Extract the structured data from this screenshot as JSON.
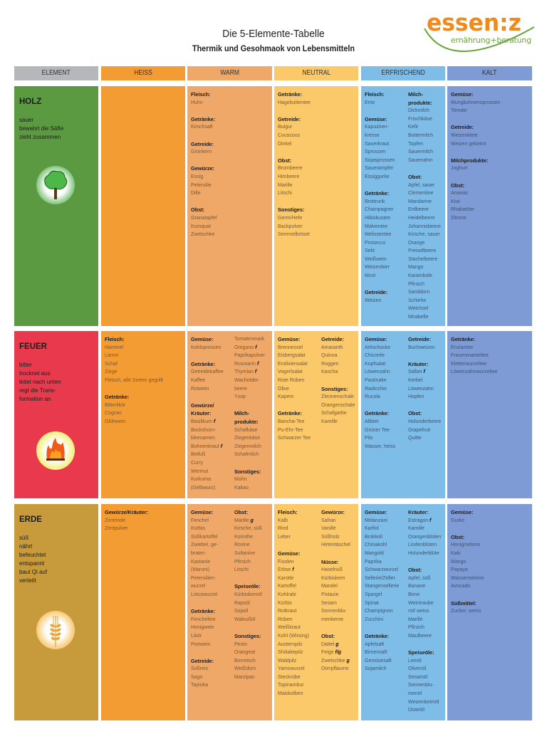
{
  "header": {
    "title": "Die 5-Elemente-Tabelle",
    "subtitle": "Thermik und Gesohmaok von Lebensmitteln",
    "logo_brand": "essen:z",
    "logo_tagline": "ernährung+beratung"
  },
  "columns": [
    "ELEMENT",
    "HEISS",
    "WARM",
    "NEUTRAL",
    "ERFRISCHEND",
    "KALT"
  ],
  "colors": {
    "element": "#b6b7ba",
    "heiss": "#f39c34",
    "warm": "#f0a868",
    "neutral": "#fbc96a",
    "erfrischend": "#7dbde8",
    "kalt": "#7e9bd6",
    "holz": "#5b9a41",
    "feuer": "#e8394d",
    "erde": "#c79a3c",
    "brand_orange": "#f08a1c",
    "brand_green": "#6aa53a"
  },
  "rows": [
    {
      "element": {
        "name": "HOLZ",
        "icon": "tree-icon",
        "desc": [
          "sauer",
          "bewahrt die Säfte",
          "zieht zusammen"
        ]
      },
      "cells": [
        [],
        [
          [
            {
              "title": "Fleisch:",
              "items": [
                "Huhn"
              ]
            },
            {
              "title": "Getränke:",
              "items": [
                "Kirschsaft"
              ]
            },
            {
              "title": "Getreide:",
              "items": [
                "Grünkern"
              ]
            },
            {
              "title": "Gewürze:",
              "items": [
                "Essig",
                "Petersilie",
                "Dille"
              ]
            },
            {
              "title": "Obst:",
              "items": [
                "Granatapfel",
                "Kumquat",
                "Zwetschke"
              ]
            }
          ]
        ],
        [
          [
            {
              "title": "Getränke:",
              "items": [
                "Hagebuttentee"
              ]
            },
            {
              "title": "Getreide:",
              "items": [
                "Bulgur",
                "Couscous",
                "Dinkel"
              ]
            },
            {
              "title": "Obst:",
              "items": [
                "Brombeere",
                "Himbeere",
                "Marille",
                "Litschi"
              ]
            },
            {
              "title": "Sonstiges:",
              "items": [
                "Germ/Hefe",
                "Backpulver",
                "Semmelbrösel"
              ]
            }
          ]
        ],
        [
          [
            {
              "title": "Fleisch:",
              "items": [
                "Ente"
              ]
            },
            {
              "title": "Gemüse:",
              "items": [
                "Kapuziner-",
                "kresse",
                "Sauerkraut",
                "Sprossen",
                "Sojasprossen",
                "Sauerampfer",
                "Essiggurke"
              ]
            },
            {
              "title": "Getränke:",
              "items": [
                "Brottrunk",
                "Champagner",
                "Hibiskustee",
                "Malventee",
                "Melissentee",
                "Prosecco",
                "Sekt",
                "Weißwein",
                "Weizenbier",
                "Most"
              ]
            },
            {
              "title": "Getreide:",
              "items": [
                "Weizen"
              ]
            }
          ],
          [
            {
              "title": "Milch-|produkte:",
              "items": [
                "Dickmilch",
                "Frischkäse",
                "Kefir",
                "Buttermilch",
                "Topfen",
                "Sauermilch",
                "Sauerrahm"
              ]
            },
            {
              "title": "Obst:",
              "items": [
                "Apfel, sauer",
                "Clementine",
                "Mandarine",
                "Erdbeere",
                "Heidelbeere",
                "Johannisbeere",
                "Kirsche, sauer",
                "Orange",
                "Preiselbeere",
                "Stachelbeere",
                "Mango",
                "Karambole",
                "Pfirsich",
                "Sanddorn",
                "Schlehe",
                "Weichsel",
                "Mirabelle"
              ]
            }
          ]
        ],
        [
          [
            {
              "title": "Gemüse:",
              "items": [
                "Mungbohnensprossen",
                "Tomate"
              ]
            },
            {
              "title": "Getreide:",
              "items": [
                "Weizenkleie",
                "Weizen gekeimt"
              ]
            },
            {
              "title": "Milchprodukte:",
              "items": [
                "Joghurt"
              ]
            },
            {
              "title": "Obst:",
              "items": [
                "Ananas",
                "Kiwi",
                "Rhabarber",
                "Zitrone"
              ]
            }
          ]
        ]
      ]
    },
    {
      "element": {
        "name": "FEUER",
        "icon": "fire-icon",
        "desc": [
          "bitter",
          "trocknet aus",
          "leitet nach unten",
          "regt die Trans-",
          "formation an"
        ]
      },
      "cells": [
        [
          [
            {
              "title": "Fleisch:",
              "items": [
                "Hammel",
                "Lamm",
                "Schaf",
                "Ziege",
                "Fleisch, alle Sorten gegrillt"
              ]
            },
            {
              "title": "Getränke:",
              "items": [
                "Bitterlikör",
                "Cognac",
                "Glühwein"
              ]
            }
          ]
        ],
        [
          [
            {
              "title": "Gemüse:",
              "items": [
                "Kohlsprossen"
              ]
            },
            {
              "title": "Getränke:",
              "items": [
                "Getreidekaffee",
                "Kaffee",
                "Rotwein"
              ]
            },
            {
              "title": "Gewürze/|Kräuter:",
              "items": [
                {
                  "t": "Basilikum",
                  "m": "f"
                },
                "Bockshorn-",
                "kleesamen",
                {
                  "t": "Bohnenkraut",
                  "m": "f"
                },
                "Beifuß",
                "Curry",
                "Wermut",
                "Kurkuma",
                "(Gelbwurz)"
              ]
            }
          ],
          [
            {
              "title": "",
              "items": [
                "Tomatenmark",
                {
                  "t": "Oregano",
                  "m": "f"
                },
                "Paprikapulver",
                {
                  "t": "Rosmarin",
                  "m": "f"
                },
                {
                  "t": "Thymian",
                  "m": "f"
                },
                "Wacholder-",
                "beere",
                "Ysop"
              ]
            },
            {
              "title": "Milch-|produkte:",
              "items": [
                "Schafkäse",
                "Ziegenkäse",
                "Ziegenmilch",
                "Schafmilch"
              ]
            },
            {
              "title": "Sonstiges:",
              "items": [
                "Mohn",
                "Kakao"
              ]
            }
          ]
        ],
        [
          [
            {
              "title": "Gemüse:",
              "items": [
                "Brennessel",
                "Eisbergsalat",
                "Endiviensalat",
                "Vogerlsalat",
                "Rote Rüben",
                "Olive",
                "Kapern"
              ]
            },
            {
              "title": "Getränke:",
              "items": [
                "Bancha-Tee",
                "Pu-Ehr-Tee",
                "Schwarzer Tee"
              ]
            }
          ],
          [
            {
              "title": "Getreide:",
              "items": [
                "Amaranth",
                "Quinoa",
                "Roggen",
                "Kascha"
              ]
            },
            {
              "title": "Sonstiges:",
              "items": [
                "Zitronenschale",
                "Orangenschale",
                "Schafgarbe",
                "Kamille"
              ]
            }
          ]
        ],
        [
          [
            {
              "title": "Gemüse:",
              "items": [
                "Artischocke",
                "Chicorée",
                "Kopfsalat",
                "Löwenzahn",
                "Pastinake",
                "Radicchio",
                "Rucola"
              ]
            },
            {
              "title": "Getränke:",
              "items": [
                "Altbier",
                "Grüner Tee",
                "Pils",
                "Wasser, heiss"
              ]
            }
          ],
          [
            {
              "title": "Getreide:",
              "items": [
                "Buchweizen"
              ]
            },
            {
              "title": "Kräuter:",
              "items": [
                {
                  "t": "Salbei",
                  "m": "f"
                },
                "Kerbel",
                "Löwenzahn",
                "Hopfen"
              ]
            },
            {
              "title": "Obst:",
              "items": [
                "Holunderbeere",
                "Grapefruit",
                "Quitte"
              ]
            }
          ]
        ],
        [
          [
            {
              "title": "Getränke:",
              "items": [
                "Enziantee",
                "Frauenmanteltee",
                "Kletterwurzeltee",
                "Löwenzahnwurzeltee"
              ]
            }
          ]
        ]
      ]
    },
    {
      "element": {
        "name": "ERDE",
        "icon": "wheat-icon",
        "desc": [
          "süß",
          "nährt",
          "befeuchtet",
          "entspannt",
          "baut Qi auf",
          "verteilt"
        ]
      },
      "cells": [
        [
          [
            {
              "title": "Gewürze/Kräuter:",
              "items": [
                "Zimtrinde",
                "Zimtpulver"
              ]
            }
          ]
        ],
        [
          [
            {
              "title": "Gemüse:",
              "items": [
                "Fenchel",
                "Kürbis",
                "Süßkartoffel",
                "Zwiebel, ge-",
                "braten",
                "Kastanie",
                "(Maroni)",
                "Petersilien-",
                "wurzel",
                "Lotuswurzel"
              ]
            },
            {
              "title": "Getränke:",
              "items": [
                "Fencheltee",
                "Honigwein",
                "Likör",
                "Portwein"
              ]
            },
            {
              "title": "Getreide:",
              "items": [
                "Süßreis",
                "Sago",
                "Tapioka"
              ]
            }
          ],
          [
            {
              "title": "Obst:",
              "items": [
                {
                  "t": "Marille",
                  "m": "g"
                },
                "Kirsche, süß",
                "Korinthe",
                "Rosine",
                "Sultanine",
                "Pfirsich",
                "Litschi"
              ]
            },
            {
              "title": "Speiseöle:",
              "items": [
                "Kürbiskernöl",
                "Rapsöl",
                "Sojaöl",
                "Walnußöl"
              ]
            },
            {
              "title": "Sonstiges:",
              "items": [
                "Pesto",
                "Orangeat",
                "Borretsch",
                "Weißdorn",
                "Marzipan"
              ]
            }
          ]
        ],
        [
          [
            {
              "title": "Fleisch:",
              "items": [
                "Kalb",
                "Rind",
                "Leber"
              ]
            },
            {
              "title": "Gemüse:",
              "items": [
                "Fisolen",
                {
                  "t": "Erbse",
                  "m": "f"
                },
                "Karotte",
                "Kartoffel",
                "Kohlrabi",
                "Kürbis",
                "Rotkraut",
                "Rüben",
                "Weißkraut",
                "Kohl (Wirsing)",
                "Austernpilz",
                "Shiitakepilz",
                "Waldpilz",
                "Yamswurzel",
                "Steckrübe",
                "Topinambur",
                "Maiskolben"
              ]
            }
          ],
          [
            {
              "title": "Gewürze:",
              "items": [
                "Safran",
                "Vanille",
                "Süßholz",
                "Hirtentäschel"
              ]
            },
            {
              "title": "Nüsse:",
              "items": [
                "Haselnuß",
                "Kürbiskern",
                "Mandel",
                "Pistazie",
                "Sesam",
                "Sonnenblu-",
                "menkerne"
              ]
            },
            {
              "title": "Obst:",
              "items": [
                {
                  "t": "Dattel",
                  "m": "g"
                },
                {
                  "t": "Feige",
                  "m": "f/g"
                },
                {
                  "t": "Zwetschke",
                  "m": "g"
                },
                "Dörrpflaume"
              ]
            }
          ]
        ],
        [
          [
            {
              "title": "Gemüse:",
              "items": [
                "Melanzani",
                "Karfiol",
                "Brokkoli",
                "Chinakohl",
                "Mangold",
                "Paprika",
                "Schwarzwurzel",
                "Sellerie/Zeller",
                "Stangensellerie",
                "Spargel",
                "Spinat",
                "Champignon",
                "Zucchini"
              ]
            },
            {
              "title": "Getränke:",
              "items": [
                "Apfelsaft",
                "Birnensaft",
                "Gemüsesaft",
                "Sojamilch"
              ]
            }
          ],
          [
            {
              "title": "Kräuter:",
              "items": [
                {
                  "t": "Estragon",
                  "m": "f"
                },
                "Kamille",
                "Orangenblüten",
                "Lindenblüten",
                "Holunderblüte"
              ]
            },
            {
              "title": "Obst:",
              "items": [
                "Apfel, süß",
                "Banane",
                "Birne",
                "Weintraube",
                "rot/ weiss",
                "Marille",
                "Pfirsich",
                "Maulbeere"
              ]
            },
            {
              "title": "Speiseöle:",
              "items": [
                "Leinöl",
                "Olivenöl",
                "Sesamöl",
                "Sonnenblu-",
                "menöl",
                "Weizenkeimöl",
                "Distelöl"
              ]
            }
          ]
        ],
        [
          [
            {
              "title": "Gemüse:",
              "items": [
                "Gurke"
              ]
            },
            {
              "title": "Obst:",
              "items": [
                "Honigmelone",
                "Kaki",
                "Mango",
                "Papaya",
                "Wassermelone",
                "Avocado"
              ]
            },
            {
              "title": "Süßmittel:",
              "items": [
                "Zucker, weiss"
              ]
            }
          ]
        ]
      ]
    }
  ]
}
